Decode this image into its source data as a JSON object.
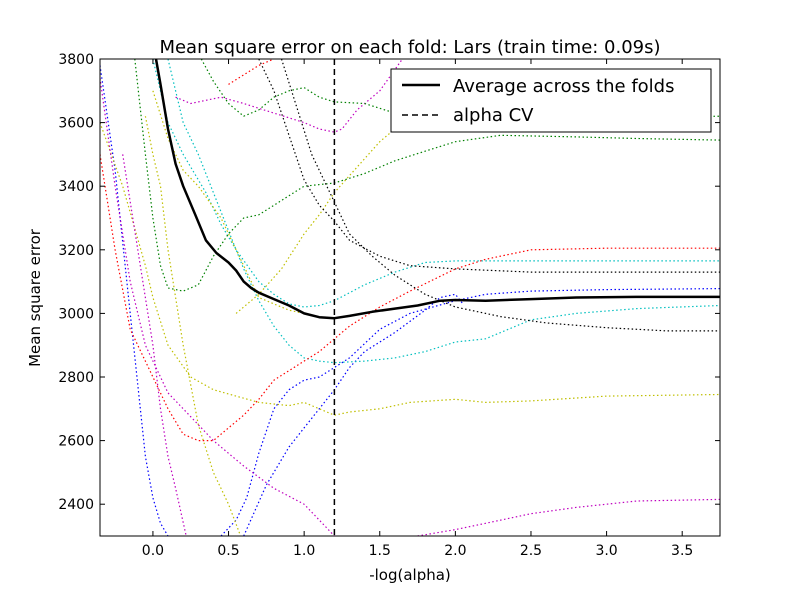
{
  "chart_data": {
    "type": "line",
    "title": "Mean square error on each fold: Lars (train time: 0.09s)",
    "xlabel": "-log(alpha)",
    "ylabel": "Mean square error",
    "xlim": [
      -0.35,
      3.75
    ],
    "ylim": [
      2300,
      3800
    ],
    "xticks": [
      0.0,
      0.5,
      1.0,
      1.5,
      2.0,
      2.5,
      3.0,
      3.5
    ],
    "xtick_labels": [
      "0.0",
      "0.5",
      "1.0",
      "1.5",
      "2.0",
      "2.5",
      "3.0",
      "3.5"
    ],
    "yticks": [
      2400,
      2600,
      2800,
      3000,
      3200,
      3400,
      3600,
      3800
    ],
    "ytick_labels": [
      "2400",
      "2600",
      "2800",
      "3000",
      "3200",
      "3400",
      "3600",
      "3800"
    ],
    "grid": false,
    "legend_position": "top-right",
    "vline": {
      "x": 1.2,
      "label": "alpha CV",
      "style": "dashed",
      "color": "#000000"
    },
    "average": {
      "name": "Average across the folds",
      "color": "#000000",
      "style": "solid",
      "points": [
        [
          0.02,
          3800
        ],
        [
          0.05,
          3720
        ],
        [
          0.1,
          3580
        ],
        [
          0.15,
          3470
        ],
        [
          0.2,
          3400
        ],
        [
          0.28,
          3310
        ],
        [
          0.35,
          3230
        ],
        [
          0.42,
          3190
        ],
        [
          0.5,
          3160
        ],
        [
          0.55,
          3135
        ],
        [
          0.6,
          3100
        ],
        [
          0.65,
          3080
        ],
        [
          0.7,
          3065
        ],
        [
          0.8,
          3045
        ],
        [
          0.9,
          3025
        ],
        [
          1.0,
          3000
        ],
        [
          1.1,
          2988
        ],
        [
          1.2,
          2985
        ],
        [
          1.3,
          2992
        ],
        [
          1.45,
          3005
        ],
        [
          1.6,
          3015
        ],
        [
          1.75,
          3025
        ],
        [
          1.9,
          3040
        ],
        [
          2.0,
          3042
        ],
        [
          2.2,
          3040
        ],
        [
          2.5,
          3045
        ],
        [
          2.8,
          3050
        ],
        [
          3.2,
          3052
        ],
        [
          3.75,
          3052
        ]
      ]
    },
    "folds": [
      {
        "color": "#0000ff",
        "points": [
          [
            -0.35,
            3780
          ],
          [
            -0.25,
            3450
          ],
          [
            -0.15,
            3000
          ],
          [
            -0.05,
            2550
          ],
          [
            0.0,
            2420
          ],
          [
            0.05,
            2340
          ],
          [
            0.1,
            2300
          ]
        ]
      },
      {
        "color": "#0000ff",
        "points": [
          [
            0.45,
            2300
          ],
          [
            0.55,
            2350
          ],
          [
            0.62,
            2420
          ],
          [
            0.7,
            2560
          ],
          [
            0.8,
            2700
          ],
          [
            0.9,
            2760
          ],
          [
            1.0,
            2790
          ],
          [
            1.1,
            2800
          ],
          [
            1.2,
            2830
          ],
          [
            1.3,
            2860
          ],
          [
            1.5,
            2950
          ],
          [
            1.7,
            3000
          ],
          [
            2.0,
            3040
          ],
          [
            2.2,
            3060
          ],
          [
            2.5,
            3070
          ],
          [
            3.0,
            3075
          ],
          [
            3.75,
            3078
          ]
        ]
      },
      {
        "color": "#0000ff",
        "points": [
          [
            0.6,
            2300
          ],
          [
            0.75,
            2460
          ],
          [
            0.9,
            2580
          ],
          [
            1.0,
            2640
          ],
          [
            1.1,
            2700
          ],
          [
            1.2,
            2760
          ],
          [
            1.3,
            2830
          ],
          [
            1.4,
            2880
          ],
          [
            1.6,
            2940
          ],
          [
            1.8,
            3010
          ],
          [
            1.9,
            3050
          ],
          [
            2.0,
            3060
          ],
          [
            2.05,
            3030
          ]
        ]
      },
      {
        "color": "#00bfbf",
        "points": [
          [
            0.0,
            3800
          ],
          [
            0.1,
            3600
          ],
          [
            0.2,
            3500
          ],
          [
            0.35,
            3380
          ],
          [
            0.45,
            3280
          ],
          [
            0.55,
            3200
          ],
          [
            0.7,
            3100
          ],
          [
            0.8,
            3060
          ],
          [
            0.9,
            3030
          ],
          [
            1.0,
            3020
          ],
          [
            1.1,
            3025
          ],
          [
            1.2,
            3040
          ],
          [
            1.4,
            3090
          ],
          [
            1.6,
            3130
          ],
          [
            1.8,
            3160
          ],
          [
            2.0,
            3165
          ],
          [
            2.5,
            3165
          ],
          [
            3.0,
            3165
          ],
          [
            3.75,
            3165
          ]
        ]
      },
      {
        "color": "#00bfbf",
        "points": [
          [
            0.1,
            3800
          ],
          [
            0.2,
            3600
          ],
          [
            0.3,
            3500
          ],
          [
            0.4,
            3380
          ],
          [
            0.5,
            3260
          ],
          [
            0.6,
            3140
          ],
          [
            0.7,
            3040
          ],
          [
            0.8,
            2960
          ],
          [
            0.9,
            2900
          ],
          [
            1.0,
            2860
          ],
          [
            1.1,
            2850
          ],
          [
            1.2,
            2845
          ],
          [
            1.4,
            2850
          ],
          [
            1.6,
            2860
          ],
          [
            1.8,
            2880
          ],
          [
            2.0,
            2910
          ],
          [
            2.2,
            2920
          ],
          [
            2.5,
            2980
          ],
          [
            2.8,
            3000
          ],
          [
            3.2,
            3015
          ],
          [
            3.75,
            3025
          ]
        ]
      },
      {
        "color": "#bfbf00",
        "points": [
          [
            -0.35,
            3600
          ],
          [
            -0.2,
            3400
          ],
          [
            -0.05,
            3150
          ],
          [
            0.0,
            3050
          ],
          [
            0.1,
            2900
          ],
          [
            0.25,
            2800
          ],
          [
            0.4,
            2760
          ],
          [
            0.55,
            2740
          ],
          [
            0.7,
            2720
          ],
          [
            0.9,
            2710
          ],
          [
            1.0,
            2720
          ],
          [
            1.1,
            2700
          ],
          [
            1.2,
            2680
          ],
          [
            1.3,
            2690
          ],
          [
            1.5,
            2700
          ],
          [
            1.7,
            2720
          ],
          [
            2.0,
            2730
          ],
          [
            2.2,
            2720
          ],
          [
            2.5,
            2725
          ],
          [
            3.0,
            2740
          ],
          [
            3.75,
            2745
          ]
        ]
      },
      {
        "color": "#bfbf00",
        "points": [
          [
            0.0,
            3700
          ],
          [
            0.1,
            3550
          ],
          [
            0.2,
            3450
          ],
          [
            0.3,
            3400
          ],
          [
            0.45,
            3300
          ],
          [
            0.6,
            3150
          ],
          [
            0.7,
            3050
          ],
          [
            0.8,
            3030
          ],
          [
            0.9,
            3010
          ],
          [
            1.0,
            3000
          ]
        ]
      },
      {
        "color": "#bfbf00",
        "points": [
          [
            0.55,
            3000
          ],
          [
            0.7,
            3060
          ],
          [
            0.85,
            3140
          ],
          [
            1.0,
            3250
          ],
          [
            1.1,
            3310
          ],
          [
            1.2,
            3380
          ],
          [
            1.35,
            3460
          ],
          [
            1.5,
            3540
          ],
          [
            1.7,
            3620
          ],
          [
            1.85,
            3700
          ]
        ]
      },
      {
        "color": "#bfbf00",
        "points": [
          [
            -0.05,
            3620
          ],
          [
            0.0,
            3500
          ],
          [
            0.05,
            3400
          ],
          [
            0.1,
            3200
          ],
          [
            0.2,
            2900
          ],
          [
            0.3,
            2650
          ],
          [
            0.4,
            2500
          ],
          [
            0.5,
            2400
          ],
          [
            0.58,
            2300
          ]
        ]
      },
      {
        "color": "#bf00bf",
        "points": [
          [
            -0.35,
            3740
          ],
          [
            -0.25,
            3400
          ],
          [
            -0.15,
            3100
          ],
          [
            -0.05,
            2900
          ],
          [
            0.1,
            2750
          ],
          [
            0.2,
            2700
          ],
          [
            0.3,
            2650
          ],
          [
            0.4,
            2600
          ],
          [
            0.5,
            2560
          ],
          [
            0.6,
            2520
          ],
          [
            0.8,
            2450
          ],
          [
            1.0,
            2400
          ],
          [
            1.1,
            2350
          ],
          [
            1.2,
            2300
          ]
        ]
      },
      {
        "color": "#bf00bf",
        "points": [
          [
            -0.2,
            3500
          ],
          [
            -0.1,
            3200
          ],
          [
            0.0,
            2900
          ],
          [
            0.05,
            2700
          ],
          [
            0.1,
            2550
          ],
          [
            0.15,
            2450
          ],
          [
            0.22,
            2300
          ]
        ]
      },
      {
        "color": "#bf00bf",
        "points": [
          [
            0.15,
            3680
          ],
          [
            0.25,
            3660
          ],
          [
            0.35,
            3670
          ],
          [
            0.45,
            3680
          ],
          [
            0.6,
            3660
          ],
          [
            0.8,
            3630
          ],
          [
            1.0,
            3600
          ],
          [
            1.1,
            3580
          ],
          [
            1.2,
            3570
          ],
          [
            1.25,
            3580
          ],
          [
            1.35,
            3640
          ],
          [
            1.5,
            3700
          ],
          [
            1.65,
            3800
          ]
        ]
      },
      {
        "color": "#bf00bf",
        "points": [
          [
            1.75,
            2300
          ],
          [
            2.0,
            2320
          ],
          [
            2.2,
            2340
          ],
          [
            2.5,
            2370
          ],
          [
            2.8,
            2390
          ],
          [
            3.2,
            2410
          ],
          [
            3.75,
            2415
          ]
        ]
      },
      {
        "color": "#008000",
        "points": [
          [
            -0.12,
            3800
          ],
          [
            -0.05,
            3500
          ],
          [
            0.0,
            3300
          ],
          [
            0.05,
            3150
          ],
          [
            0.1,
            3080
          ],
          [
            0.2,
            3070
          ],
          [
            0.3,
            3090
          ],
          [
            0.4,
            3180
          ],
          [
            0.5,
            3250
          ],
          [
            0.6,
            3300
          ],
          [
            0.7,
            3310
          ],
          [
            0.8,
            3340
          ],
          [
            0.9,
            3370
          ],
          [
            1.0,
            3400
          ],
          [
            1.2,
            3410
          ],
          [
            1.4,
            3440
          ],
          [
            1.6,
            3480
          ],
          [
            1.8,
            3510
          ],
          [
            2.0,
            3540
          ],
          [
            2.3,
            3560
          ],
          [
            2.8,
            3555
          ],
          [
            3.2,
            3550
          ],
          [
            3.75,
            3545
          ]
        ]
      },
      {
        "color": "#008000",
        "points": [
          [
            0.32,
            3800
          ],
          [
            0.4,
            3730
          ],
          [
            0.5,
            3660
          ],
          [
            0.6,
            3620
          ],
          [
            0.7,
            3640
          ],
          [
            0.8,
            3680
          ],
          [
            0.9,
            3700
          ],
          [
            1.0,
            3710
          ],
          [
            1.1,
            3680
          ],
          [
            1.2,
            3665
          ],
          [
            1.4,
            3660
          ],
          [
            1.6,
            3630
          ],
          [
            1.8,
            3600
          ],
          [
            2.0,
            3595
          ],
          [
            2.3,
            3600
          ],
          [
            2.6,
            3610
          ],
          [
            3.0,
            3615
          ],
          [
            3.75,
            3620
          ]
        ]
      },
      {
        "color": "#ff0000",
        "points": [
          [
            -0.35,
            3500
          ],
          [
            -0.25,
            3200
          ],
          [
            -0.15,
            2950
          ],
          [
            0.0,
            2800
          ],
          [
            0.1,
            2700
          ],
          [
            0.2,
            2620
          ],
          [
            0.3,
            2600
          ],
          [
            0.4,
            2600
          ],
          [
            0.5,
            2640
          ],
          [
            0.6,
            2680
          ],
          [
            0.7,
            2730
          ],
          [
            0.8,
            2790
          ],
          [
            1.0,
            2850
          ],
          [
            1.1,
            2880
          ],
          [
            1.2,
            2920
          ],
          [
            1.3,
            2960
          ],
          [
            1.5,
            3020
          ],
          [
            1.7,
            3070
          ],
          [
            2.0,
            3140
          ],
          [
            2.2,
            3170
          ],
          [
            2.5,
            3200
          ],
          [
            3.0,
            3205
          ],
          [
            3.75,
            3205
          ]
        ]
      },
      {
        "color": "#ff0000",
        "points": [
          [
            0.5,
            3720
          ],
          [
            0.7,
            3780
          ],
          [
            0.8,
            3800
          ]
        ]
      },
      {
        "color": "#000000",
        "points": [
          [
            0.7,
            3800
          ],
          [
            0.8,
            3700
          ],
          [
            0.9,
            3560
          ],
          [
            1.0,
            3420
          ],
          [
            1.1,
            3340
          ],
          [
            1.2,
            3290
          ],
          [
            1.3,
            3230
          ],
          [
            1.5,
            3180
          ],
          [
            1.7,
            3150
          ],
          [
            2.0,
            3140
          ],
          [
            2.5,
            3130
          ],
          [
            3.0,
            3130
          ],
          [
            3.75,
            3130
          ]
        ]
      },
      {
        "color": "#000000",
        "points": [
          [
            0.85,
            3800
          ],
          [
            0.95,
            3650
          ],
          [
            1.05,
            3500
          ],
          [
            1.2,
            3350
          ],
          [
            1.3,
            3250
          ],
          [
            1.45,
            3180
          ],
          [
            1.6,
            3120
          ],
          [
            1.8,
            3060
          ],
          [
            2.0,
            3020
          ],
          [
            2.3,
            2990
          ],
          [
            2.6,
            2970
          ],
          [
            3.0,
            2955
          ],
          [
            3.4,
            2945
          ],
          [
            3.75,
            2945
          ]
        ]
      }
    ]
  }
}
